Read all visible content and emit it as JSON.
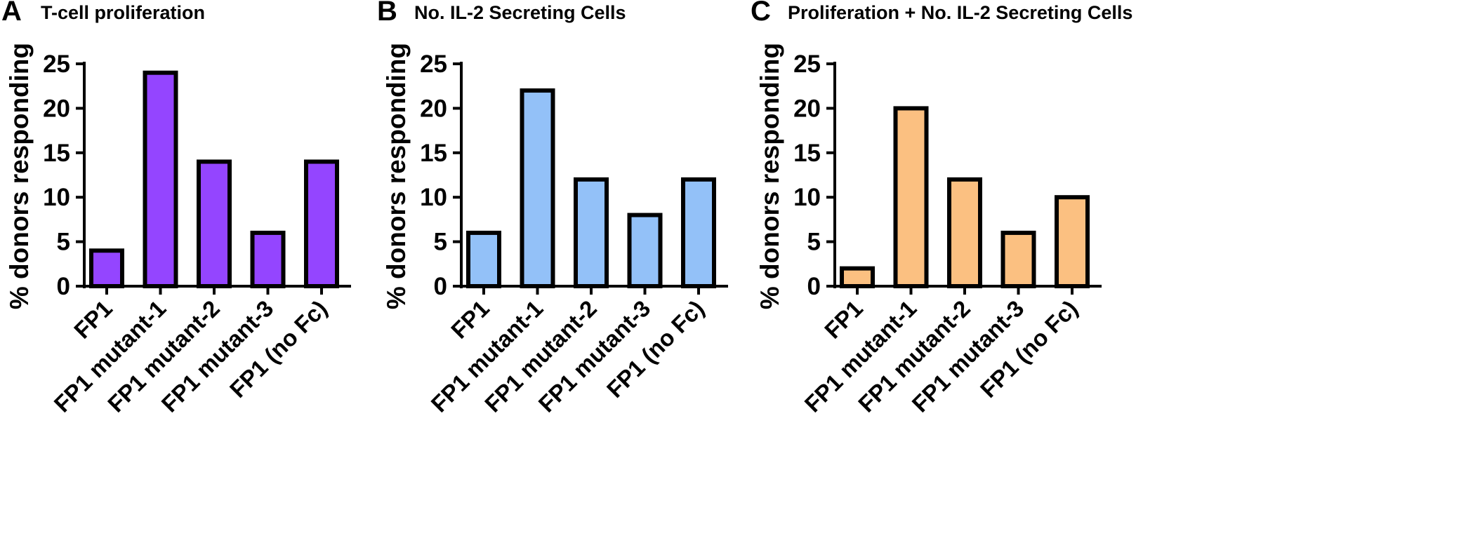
{
  "chart_data": [
    {
      "type": "bar",
      "panel_label": "A",
      "title": "T-cell proliferation",
      "ylabel": "% donors responding",
      "xlabel": "",
      "categories": [
        "FP1",
        "FP1 mutant-1",
        "FP1 mutant-2",
        "FP1 mutant-3",
        "FP1 (no Fc)"
      ],
      "values": [
        4,
        24,
        14,
        6,
        14
      ],
      "ylim": [
        0,
        25
      ],
      "yticks": [
        0,
        5,
        10,
        15,
        20,
        25
      ],
      "bar_color": "#9445FF",
      "grid": false,
      "legend": "none"
    },
    {
      "type": "bar",
      "panel_label": "B",
      "title": "No. IL-2 Secreting Cells",
      "ylabel": "% donors responding",
      "xlabel": "",
      "categories": [
        "FP1",
        "FP1 mutant-1",
        "FP1 mutant-2",
        "FP1 mutant-3",
        "FP1 (no Fc)"
      ],
      "values": [
        6,
        22,
        12,
        8,
        12
      ],
      "ylim": [
        0,
        25
      ],
      "yticks": [
        0,
        5,
        10,
        15,
        20,
        25
      ],
      "bar_color": "#93C1F8",
      "grid": false,
      "legend": "none"
    },
    {
      "type": "bar",
      "panel_label": "C",
      "title": "Proliferation + No. IL-2 Secreting Cells",
      "ylabel": "% donors responding",
      "xlabel": "",
      "categories": [
        "FP1",
        "FP1 mutant-1",
        "FP1 mutant-2",
        "FP1 mutant-3",
        "FP1 (no Fc)"
      ],
      "values": [
        2,
        20,
        12,
        6,
        10
      ],
      "ylim": [
        0,
        25
      ],
      "yticks": [
        0,
        5,
        10,
        15,
        20,
        25
      ],
      "bar_color": "#FBC081",
      "grid": false,
      "legend": "none"
    }
  ]
}
